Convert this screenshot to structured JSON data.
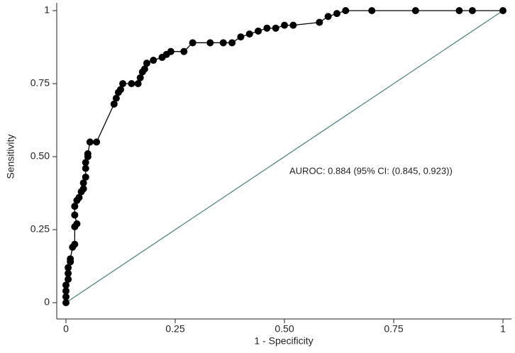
{
  "chart_data": {
    "type": "line",
    "x_label": "1 - Specificity",
    "y_label": "Sensitivity",
    "annotation": "AUROC: 0.884 (95% CI: (0.845, 0.923))",
    "x": [
      0,
      0,
      0,
      0,
      0.005,
      0.005,
      0.005,
      0.01,
      0.01,
      0.015,
      0.02,
      0.02,
      0.025,
      0.02,
      0.02,
      0.025,
      0.03,
      0.035,
      0.04,
      0.04,
      0.045,
      0.045,
      0.045,
      0.05,
      0.05,
      0.055,
      0.07,
      0.11,
      0.115,
      0.12,
      0.125,
      0.13,
      0.15,
      0.165,
      0.17,
      0.175,
      0.18,
      0.185,
      0.2,
      0.22,
      0.23,
      0.24,
      0.27,
      0.29,
      0.33,
      0.36,
      0.38,
      0.4,
      0.42,
      0.44,
      0.46,
      0.48,
      0.5,
      0.52,
      0.58,
      0.6,
      0.62,
      0.64,
      0.7,
      0.8,
      0.9,
      0.93,
      1
    ],
    "values": [
      0,
      0.02,
      0.04,
      0.06,
      0.08,
      0.1,
      0.12,
      0.14,
      0.15,
      0.19,
      0.2,
      0.26,
      0.27,
      0.3,
      0.33,
      0.35,
      0.36,
      0.38,
      0.39,
      0.41,
      0.43,
      0.46,
      0.48,
      0.5,
      0.51,
      0.55,
      0.55,
      0.68,
      0.7,
      0.72,
      0.73,
      0.75,
      0.75,
      0.75,
      0.77,
      0.79,
      0.8,
      0.82,
      0.83,
      0.84,
      0.85,
      0.86,
      0.86,
      0.89,
      0.89,
      0.89,
      0.89,
      0.91,
      0.92,
      0.93,
      0.94,
      0.94,
      0.95,
      0.95,
      0.96,
      0.98,
      0.99,
      1,
      1,
      1,
      1,
      1,
      1
    ],
    "color": "#000000",
    "reference_color": "#4a7f78",
    "xlim": [
      0,
      1
    ],
    "ylim": [
      0,
      1
    ],
    "xticks": [
      0,
      0.25,
      {
        "value": 0.5,
        "label": "0.50"
      },
      0.75,
      1
    ],
    "yticks": [
      0,
      0.25,
      {
        "value": 0.5,
        "label": "0.50"
      },
      0.75,
      1
    ]
  }
}
